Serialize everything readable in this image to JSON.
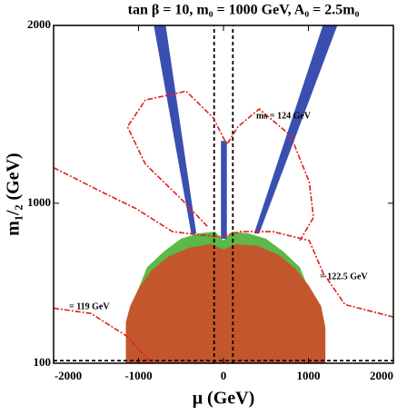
{
  "chart_data": {
    "type": "contour",
    "title": "tan β = 10, m₀ = 1000 GeV, A₀ = 2.5m₀",
    "xlabel": "μ (GeV)",
    "ylabel": "m₁/₂ (GeV)",
    "xlim": [
      -2000,
      2000
    ],
    "ylim": [
      100,
      2000
    ],
    "xticks": [
      -2000,
      -1000,
      0,
      1000,
      2000
    ],
    "yticks": [
      100,
      1000,
      2000
    ],
    "regions": [
      {
        "color": "#5cb848",
        "x": [
          -1000,
          -900,
          -700,
          -500,
          -300,
          -100,
          0,
          100,
          300,
          500,
          700,
          900,
          1000
        ],
        "y": [
          520,
          640,
          730,
          800,
          830,
          840,
          790,
          840,
          830,
          800,
          730,
          640,
          520
        ]
      },
      {
        "color": "#c4562e",
        "x": [
          -1150,
          -1150,
          -1100,
          -1000,
          -850,
          -650,
          -400,
          -150,
          0,
          150,
          400,
          650,
          850,
          1000,
          1150,
          1200,
          1200
        ],
        "y": [
          100,
          330,
          420,
          520,
          620,
          700,
          750,
          770,
          740,
          770,
          760,
          710,
          630,
          540,
          420,
          300,
          100
        ]
      },
      {
        "color": "#3a4fb0",
        "x": [
          -820,
          -680,
          -320,
          -380
        ],
        "y": [
          2000,
          2000,
          830,
          830
        ]
      },
      {
        "color": "#3a4fb0",
        "x": [
          1170,
          1340,
          420,
          360
        ],
        "y": [
          2000,
          2000,
          830,
          830
        ]
      },
      {
        "color": "#3a4fb0",
        "x": [
          -30,
          40,
          40,
          -30
        ],
        "y": [
          1350,
          1350,
          800,
          800
        ]
      }
    ],
    "contours": [
      {
        "label": "mₕ = 124 GeV",
        "color": "#e0201c",
        "x": [
          -190,
          -490,
          -920,
          -1130,
          -920,
          -440,
          -120,
          40,
          170,
          420,
          790,
          1010,
          1060,
          900
        ],
        "y": [
          870,
          1020,
          1220,
          1430,
          1580,
          1630,
          1480,
          1330,
          1430,
          1530,
          1380,
          1120,
          920,
          790
        ]
      },
      {
        "label": "= 122.5 GeV",
        "color": "#e0201c",
        "x": [
          -2000,
          -1460,
          -1030,
          -600,
          -60,
          200,
          580,
          1010,
          1170,
          1430,
          2000
        ],
        "y": [
          1200,
          1070,
          970,
          840,
          810,
          840,
          840,
          790,
          610,
          430,
          360
        ]
      },
      {
        "label": "= 119 GeV",
        "color": "#e0201c",
        "x": [
          -2000,
          -1560,
          -1130,
          -870
        ],
        "y": [
          410,
          380,
          250,
          110
        ]
      }
    ],
    "lines": [
      {
        "color": "#000000",
        "x": [
          -110,
          -110
        ],
        "y": [
          100,
          2000
        ]
      },
      {
        "color": "#000000",
        "x": [
          110,
          110
        ],
        "y": [
          100,
          2000
        ]
      },
      {
        "color": "#000000",
        "x": [
          -2000,
          2000
        ],
        "y": [
          115,
          115
        ]
      }
    ]
  }
}
